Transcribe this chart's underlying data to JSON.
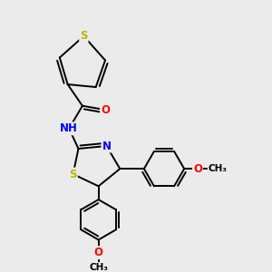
{
  "bg_color": "#ebebeb",
  "atom_color_C": "black",
  "atom_color_N": "blue",
  "atom_color_O": "red",
  "atom_color_S_thio": "#b8b800",
  "atom_color_H": "#7799aa",
  "bond_color": "black",
  "bond_width": 1.4,
  "font_size_atoms": 8.5,
  "xlim": [
    0,
    10
  ],
  "ylim": [
    0,
    10
  ]
}
